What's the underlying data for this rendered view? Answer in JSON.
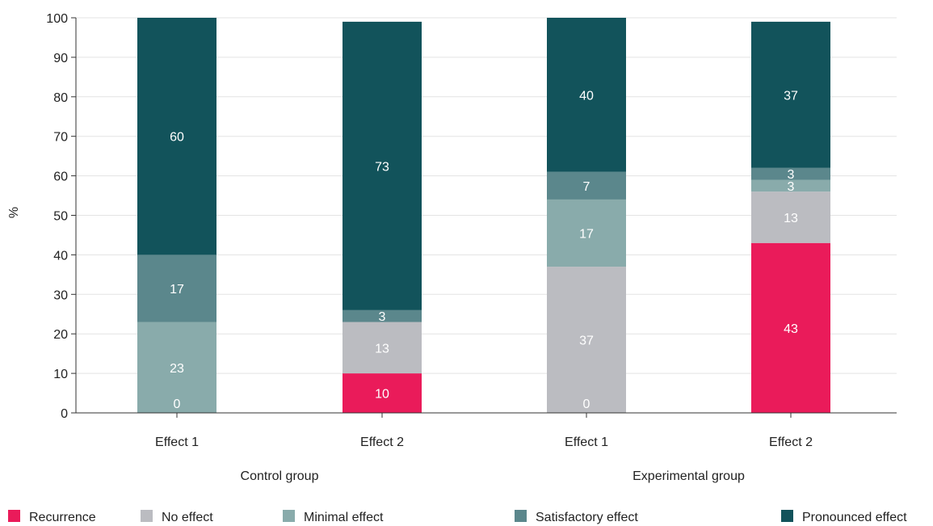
{
  "chart_data": {
    "type": "bar",
    "stacked": true,
    "ylabel": "%",
    "xlabel": "",
    "ylim": [
      0,
      100
    ],
    "yticks": [
      0,
      10,
      20,
      30,
      40,
      50,
      60,
      70,
      80,
      90,
      100
    ],
    "grid": true,
    "legend_position": "bottom",
    "categories": [
      "Effect 1",
      "Effect 2",
      "Effect 1",
      "Effect 2"
    ],
    "groups": [
      {
        "label": "Control group",
        "categories": [
          0,
          1
        ]
      },
      {
        "label": "Experimental group",
        "categories": [
          2,
          3
        ]
      }
    ],
    "series": [
      {
        "name": "Recurrence",
        "color": "#ea1b5a",
        "values": [
          0,
          10,
          0,
          43
        ],
        "labels": [
          "",
          "10",
          "",
          "43"
        ]
      },
      {
        "name": "No effect",
        "color": "#bbbcc1",
        "values": [
          0,
          13,
          37,
          13
        ],
        "labels": [
          "",
          "13",
          "37",
          "13"
        ]
      },
      {
        "name": "Minimal effect",
        "color": "#89abab",
        "values": [
          23,
          0,
          17,
          3
        ],
        "labels": [
          "23",
          "",
          "17",
          "3"
        ]
      },
      {
        "name": "Satisfactory effect",
        "color": "#5b878c",
        "values": [
          17,
          3,
          7,
          3
        ],
        "labels": [
          "17",
          "3",
          "7",
          "3"
        ]
      },
      {
        "name": "Pronounced effect",
        "color": "#12535b",
        "values": [
          60,
          73,
          40,
          37
        ],
        "labels": [
          "60",
          "73",
          "40",
          "37"
        ]
      }
    ],
    "extra_labels": [
      {
        "category": 0,
        "text": "0",
        "value": 0
      },
      {
        "category": 2,
        "text": "0",
        "value": 0
      }
    ]
  }
}
